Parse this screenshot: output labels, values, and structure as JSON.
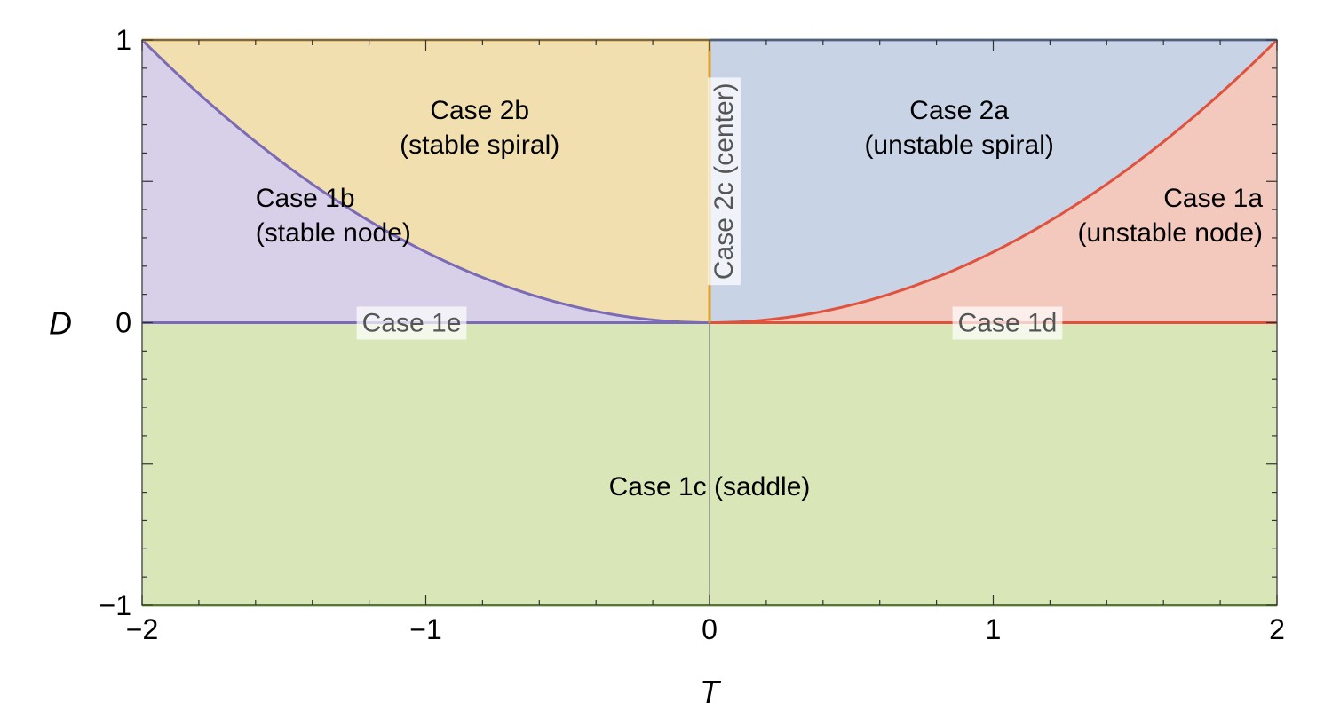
{
  "chart_data": {
    "type": "area",
    "title": "",
    "xlabel": "T",
    "ylabel": "D",
    "xlim": [
      -2,
      2
    ],
    "ylim": [
      -1,
      1
    ],
    "x_ticks": [
      {
        "value": -2,
        "label": "−2"
      },
      {
        "value": -1,
        "label": "−1"
      },
      {
        "value": 0,
        "label": "0"
      },
      {
        "value": 1,
        "label": "1"
      },
      {
        "value": 2,
        "label": "2"
      }
    ],
    "y_ticks": [
      {
        "value": -1,
        "label": "−1"
      },
      {
        "value": 0,
        "label": "0"
      },
      {
        "value": 1,
        "label": "1"
      }
    ],
    "boundary_curve": "D = T^2/4",
    "grid": false,
    "legend": "none",
    "colors": {
      "stable_node": "#d8d0e8",
      "stable_spiral": "#f1dfb0",
      "unstable_spiral": "#c9d3e6",
      "unstable_node": "#f4c9bd",
      "saddle": "#d8e6b8",
      "stable_curve": "#7b6ab5",
      "unstable_curve": "#e0523d",
      "center_line": "#e0a030",
      "saddle_edge": "#7cb342"
    },
    "regions": [
      {
        "id": "case1b",
        "lines": [
          "Case 1b",
          "(stable node)"
        ],
        "x": -1.6,
        "y": 0.41,
        "anchor": "start"
      },
      {
        "id": "case2b",
        "lines": [
          "Case 2b",
          "(stable spiral)"
        ],
        "x": -0.81,
        "y": 0.72,
        "anchor": "middle"
      },
      {
        "id": "case2a",
        "lines": [
          "Case 2a",
          "(unstable spiral)"
        ],
        "x": 0.88,
        "y": 0.72,
        "anchor": "middle"
      },
      {
        "id": "case1a",
        "lines": [
          "Case 1a",
          "(unstable node)"
        ],
        "x": 1.95,
        "y": 0.41,
        "anchor": "end"
      },
      {
        "id": "case1c",
        "lines": [
          "Case 1c (saddle)"
        ],
        "x": 0,
        "y": -0.61,
        "anchor": "middle"
      }
    ],
    "boundary_labels": [
      {
        "id": "case1e",
        "text": "Case 1e",
        "x": -1.05,
        "y": 0
      },
      {
        "id": "case1d",
        "text": "Case 1d",
        "x": 1.05,
        "y": 0
      },
      {
        "id": "case2c",
        "text": "Case 2c (center)",
        "x": 0.05,
        "y": 0.5,
        "rotate": -90
      }
    ]
  }
}
